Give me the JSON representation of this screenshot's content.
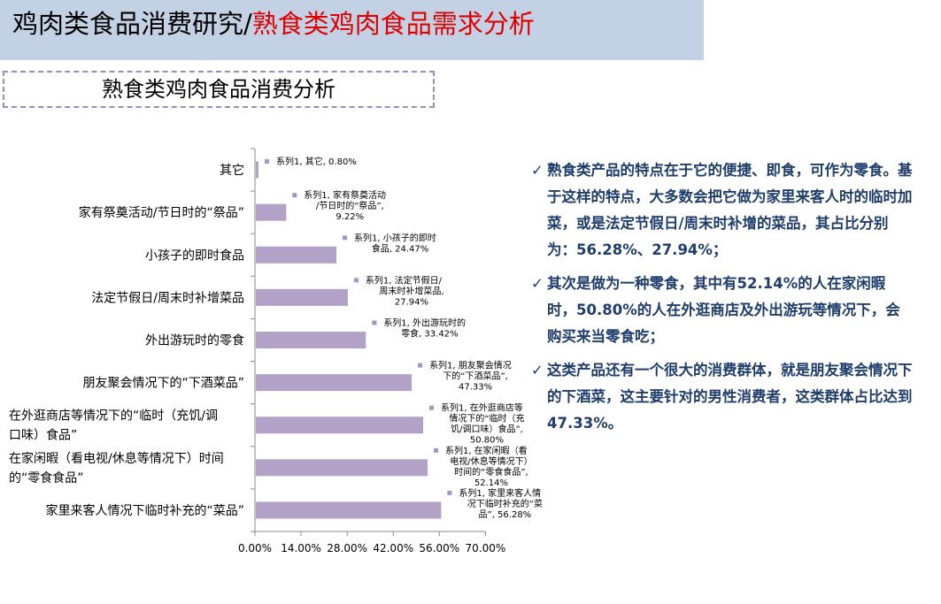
{
  "header": {
    "title_main": "鸡肉类食品消费研究/",
    "title_sub": "熟食类鸡肉食品需求分析"
  },
  "section": {
    "title": "熟食类鸡肉食品消费分析"
  },
  "colors": {
    "bar": "#b2a2c7",
    "marker": "#a694c6",
    "header_bg": "#c3d1e4",
    "subtitle": "#e00000",
    "text_blue": "#1f3e6e"
  },
  "chart_data": {
    "type": "bar",
    "orientation": "horizontal",
    "grid": false,
    "xlim": [
      0,
      70
    ],
    "x_ticks": [
      "0.00%",
      "14.00%",
      "28.00%",
      "42.00%",
      "56.00%",
      "70.00%"
    ],
    "series": [
      {
        "name": "系列1",
        "values": [
          0.8,
          9.22,
          24.47,
          27.94,
          33.42,
          47.33,
          50.8,
          52.14,
          56.28
        ]
      }
    ],
    "categories": [
      [
        "其它"
      ],
      [
        "家有祭奠活动/节日时的“祭品”"
      ],
      [
        "小孩子的即时食品"
      ],
      [
        "法定节假日/周末时补增菜品"
      ],
      [
        "外出游玩时的零食"
      ],
      [
        "朋友聚会情况下的“下酒菜品”"
      ],
      [
        "在外逛商店等情况下的“临时（充饥/调",
        "口味）食品”"
      ],
      [
        "在家闲暇（看电视/休息等情况下）时间",
        "的“零食食品”"
      ],
      [
        "家里来客人情况下临时补充的“菜品”"
      ]
    ],
    "data_labels": [
      [
        "系列1, 其它, 0.80%"
      ],
      [
        "系列1, 家有祭奠活动",
        "/节日时的“祭品”,",
        "9.22%"
      ],
      [
        "系列1, 小孩子的即时",
        "食品, 24.47%"
      ],
      [
        "系列1, 法定节假日/",
        "周末时补增菜品,",
        "27.94%"
      ],
      [
        "系列1, 外出游玩时的",
        "零食, 33.42%"
      ],
      [
        "系列1, 朋友聚会情况",
        "下的“下酒菜品”,",
        "47.33%"
      ],
      [
        "系列1, 在外逛商店等",
        "情况下的“临时（充",
        "饥/调口味）食品”,",
        "50.80%"
      ],
      [
        "系列1, 在家闲暇（看",
        "电视/休息等情况下）",
        "时间的“零食食品”,",
        "52.14%"
      ],
      [
        "系列1, 家里来客人情",
        "况下临时补充的“菜",
        "品”, 56.28%"
      ]
    ]
  },
  "bullets": [
    "熟食类产品的特点在于它的便捷、即食，可作为零食。基于这样的特点，大多数会把它做为家里来客人时的临时加菜，或是法定节假日/周末时补增的菜品，其占比分别为：56.28%、27.94%；",
    "其次是做为一种零食，其中有52.14%的人在家闲暇时，50.80%的人在外逛商店及外出游玩等情况下，会购买来当零食吃；",
    "这类产品还有一个很大的消费群体，就是朋友聚会情况下的下酒菜，这主要针对的男性消费者，这类群体占比达到47.33%。"
  ],
  "bullet_mark": "✓"
}
